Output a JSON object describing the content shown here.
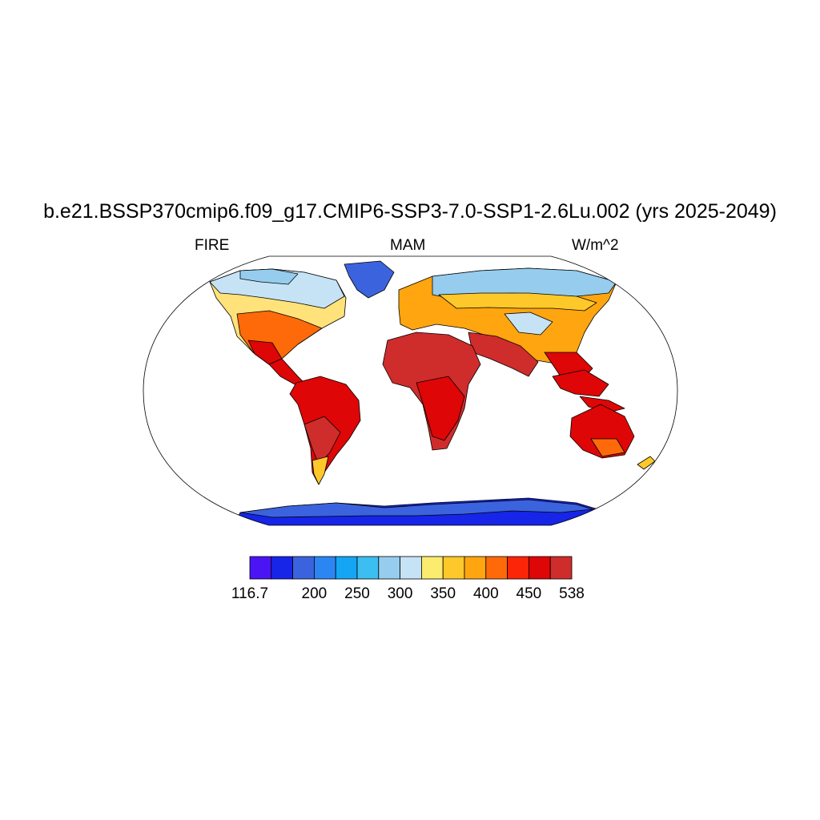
{
  "title": "b.e21.BSSP370cmip6.f09_g17.CMIP6-SSP3-7.0-SSP1-2.6Lu.002 (yrs 2025-2049)",
  "subtitle_left": "FIRE",
  "subtitle_center": "MAM",
  "subtitle_right": "W/m^2",
  "projection": "Robinson",
  "colorbar": {
    "colors": [
      "#4a14f5",
      "#1625e8",
      "#3c63de",
      "#2b86f3",
      "#14a6f5",
      "#3cbef0",
      "#96cdee",
      "#c6e3f6",
      "#fbeb6e",
      "#fdc82a",
      "#fea510",
      "#fe6a0a",
      "#fb2508",
      "#de0606",
      "#cf2c2c"
    ],
    "tick_labels": [
      {
        "slot": 0,
        "text": "116.7"
      },
      {
        "slot": 3,
        "text": "200"
      },
      {
        "slot": 5,
        "text": "250"
      },
      {
        "slot": 7,
        "text": "300"
      },
      {
        "slot": 9,
        "text": "350"
      },
      {
        "slot": 11,
        "text": "400"
      },
      {
        "slot": 13,
        "text": "450"
      },
      {
        "slot": 15,
        "text": "538"
      }
    ]
  }
}
